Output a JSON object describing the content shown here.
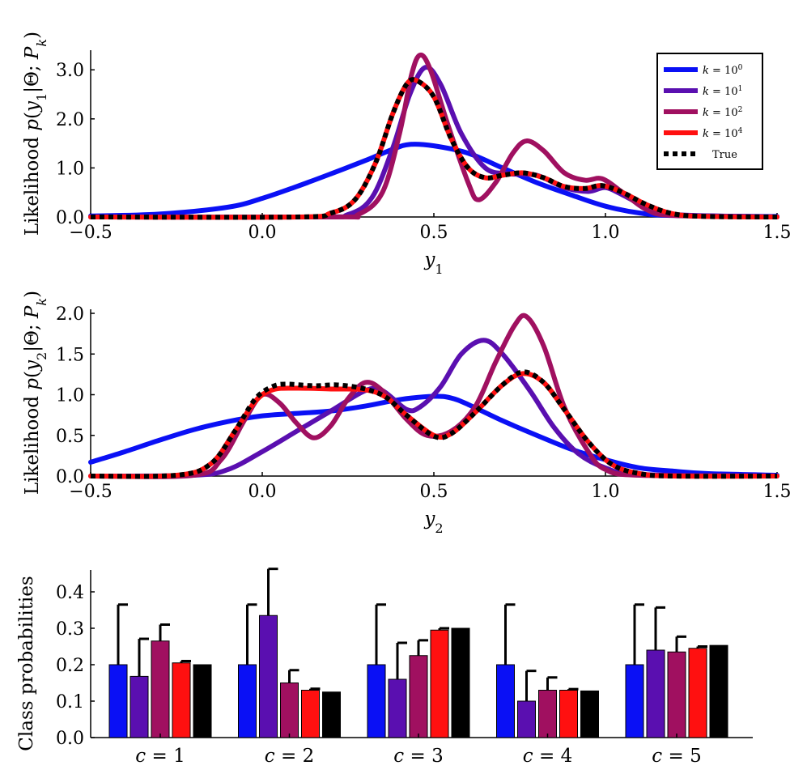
{
  "colors": {
    "k1": "#0a10f5",
    "k10": "#5a0fb0",
    "k100": "#a01060",
    "k10000": "#ff1010",
    "true": "#000000"
  },
  "chart_data": [
    {
      "type": "line",
      "ylabel": "Likelihood p(y1|Θ; P_k)",
      "xlabel": "y1",
      "xlim": [
        -0.5,
        1.5
      ],
      "ylim": [
        0,
        3.4
      ],
      "xticks": [
        "−0.5",
        "0.0",
        "0.5",
        "1.0",
        "1.5"
      ],
      "yticks": [
        "0.0",
        "1.0",
        "2.0",
        "3.0"
      ],
      "legend": {
        "position": "top-right",
        "entries": [
          "k = 10^0",
          "k = 10^1",
          "k = 10^2",
          "k = 10^4",
          "True"
        ]
      },
      "series": [
        {
          "name": "k = 10^0",
          "color_key": "k1",
          "dashed": false,
          "points": [
            [
              -0.5,
              0.02
            ],
            [
              -0.3,
              0.06
            ],
            [
              -0.1,
              0.2
            ],
            [
              0.0,
              0.38
            ],
            [
              0.1,
              0.62
            ],
            [
              0.2,
              0.88
            ],
            [
              0.3,
              1.15
            ],
            [
              0.38,
              1.38
            ],
            [
              0.43,
              1.48
            ],
            [
              0.5,
              1.45
            ],
            [
              0.6,
              1.3
            ],
            [
              0.7,
              1.0
            ],
            [
              0.8,
              0.7
            ],
            [
              0.9,
              0.45
            ],
            [
              1.0,
              0.22
            ],
            [
              1.1,
              0.08
            ],
            [
              1.2,
              0.03
            ],
            [
              1.5,
              0.01
            ]
          ]
        },
        {
          "name": "k = 10^1",
          "color_key": "k10",
          "dashed": false,
          "points": [
            [
              -0.5,
              0.0
            ],
            [
              0.15,
              0.0
            ],
            [
              0.25,
              0.05
            ],
            [
              0.32,
              0.4
            ],
            [
              0.38,
              1.4
            ],
            [
              0.43,
              2.5
            ],
            [
              0.475,
              3.05
            ],
            [
              0.52,
              2.7
            ],
            [
              0.58,
              1.7
            ],
            [
              0.65,
              1.0
            ],
            [
              0.72,
              0.88
            ],
            [
              0.8,
              0.85
            ],
            [
              0.88,
              0.6
            ],
            [
              0.95,
              0.52
            ],
            [
              1.0,
              0.6
            ],
            [
              1.05,
              0.45
            ],
            [
              1.12,
              0.2
            ],
            [
              1.2,
              0.05
            ],
            [
              1.5,
              0.0
            ]
          ]
        },
        {
          "name": "k = 10^2",
          "color_key": "k100",
          "dashed": false,
          "points": [
            [
              -0.5,
              0.0
            ],
            [
              0.2,
              0.0
            ],
            [
              0.28,
              0.05
            ],
            [
              0.35,
              0.5
            ],
            [
              0.4,
              1.7
            ],
            [
              0.435,
              2.9
            ],
            [
              0.46,
              3.3
            ],
            [
              0.49,
              3.0
            ],
            [
              0.54,
              1.9
            ],
            [
              0.6,
              0.7
            ],
            [
              0.63,
              0.35
            ],
            [
              0.68,
              0.7
            ],
            [
              0.73,
              1.3
            ],
            [
              0.77,
              1.55
            ],
            [
              0.82,
              1.35
            ],
            [
              0.88,
              0.9
            ],
            [
              0.94,
              0.75
            ],
            [
              0.99,
              0.78
            ],
            [
              1.05,
              0.5
            ],
            [
              1.12,
              0.15
            ],
            [
              1.2,
              0.03
            ],
            [
              1.5,
              0.0
            ]
          ]
        },
        {
          "name": "k = 10^4",
          "color_key": "k10000",
          "dashed": false,
          "points": [
            [
              -0.5,
              0.0
            ],
            [
              0.1,
              0.0
            ],
            [
              0.2,
              0.08
            ],
            [
              0.27,
              0.35
            ],
            [
              0.33,
              1.1
            ],
            [
              0.38,
              2.1
            ],
            [
              0.42,
              2.7
            ],
            [
              0.45,
              2.78
            ],
            [
              0.5,
              2.45
            ],
            [
              0.55,
              1.6
            ],
            [
              0.6,
              1.0
            ],
            [
              0.65,
              0.8
            ],
            [
              0.7,
              0.85
            ],
            [
              0.76,
              0.9
            ],
            [
              0.82,
              0.8
            ],
            [
              0.88,
              0.62
            ],
            [
              0.94,
              0.58
            ],
            [
              0.99,
              0.64
            ],
            [
              1.05,
              0.5
            ],
            [
              1.12,
              0.25
            ],
            [
              1.2,
              0.06
            ],
            [
              1.3,
              0.01
            ],
            [
              1.5,
              0.0
            ]
          ]
        },
        {
          "name": "True",
          "color_key": "true",
          "dashed": true,
          "points": [
            [
              -0.5,
              0.0
            ],
            [
              0.1,
              0.0
            ],
            [
              0.2,
              0.08
            ],
            [
              0.27,
              0.35
            ],
            [
              0.33,
              1.1
            ],
            [
              0.38,
              2.1
            ],
            [
              0.42,
              2.7
            ],
            [
              0.45,
              2.78
            ],
            [
              0.5,
              2.45
            ],
            [
              0.55,
              1.6
            ],
            [
              0.6,
              1.0
            ],
            [
              0.65,
              0.8
            ],
            [
              0.7,
              0.85
            ],
            [
              0.76,
              0.9
            ],
            [
              0.82,
              0.8
            ],
            [
              0.88,
              0.62
            ],
            [
              0.94,
              0.58
            ],
            [
              0.99,
              0.64
            ],
            [
              1.05,
              0.5
            ],
            [
              1.12,
              0.25
            ],
            [
              1.2,
              0.06
            ],
            [
              1.3,
              0.01
            ],
            [
              1.5,
              0.0
            ]
          ]
        }
      ]
    },
    {
      "type": "line",
      "ylabel": "Likelihood p(y2|Θ; P_k)",
      "xlabel": "y2",
      "xlim": [
        -0.5,
        1.5
      ],
      "ylim": [
        0,
        2.05
      ],
      "xticks": [
        "−0.5",
        "0.0",
        "0.5",
        "1.0",
        "1.5"
      ],
      "yticks": [
        "0.0",
        "0.5",
        "1.0",
        "1.5",
        "2.0"
      ],
      "series": [
        {
          "name": "k = 10^0",
          "color_key": "k1",
          "dashed": false,
          "points": [
            [
              -0.5,
              0.17
            ],
            [
              -0.4,
              0.3
            ],
            [
              -0.3,
              0.44
            ],
            [
              -0.2,
              0.57
            ],
            [
              -0.1,
              0.67
            ],
            [
              0.0,
              0.74
            ],
            [
              0.1,
              0.77
            ],
            [
              0.2,
              0.8
            ],
            [
              0.3,
              0.86
            ],
            [
              0.4,
              0.94
            ],
            [
              0.5,
              0.98
            ],
            [
              0.55,
              0.96
            ],
            [
              0.6,
              0.88
            ],
            [
              0.7,
              0.68
            ],
            [
              0.8,
              0.5
            ],
            [
              0.9,
              0.33
            ],
            [
              1.0,
              0.2
            ],
            [
              1.1,
              0.1
            ],
            [
              1.2,
              0.06
            ],
            [
              1.3,
              0.03
            ],
            [
              1.5,
              0.01
            ]
          ]
        },
        {
          "name": "k = 10^1",
          "color_key": "k10",
          "dashed": false,
          "points": [
            [
              -0.5,
              0.0
            ],
            [
              -0.2,
              0.01
            ],
            [
              -0.1,
              0.08
            ],
            [
              0.0,
              0.3
            ],
            [
              0.1,
              0.55
            ],
            [
              0.2,
              0.8
            ],
            [
              0.3,
              1.05
            ],
            [
              0.35,
              1.05
            ],
            [
              0.42,
              0.82
            ],
            [
              0.46,
              0.85
            ],
            [
              0.52,
              1.1
            ],
            [
              0.58,
              1.5
            ],
            [
              0.645,
              1.67
            ],
            [
              0.7,
              1.5
            ],
            [
              0.78,
              1.05
            ],
            [
              0.85,
              0.6
            ],
            [
              0.92,
              0.28
            ],
            [
              1.0,
              0.1
            ],
            [
              1.1,
              0.02
            ],
            [
              1.5,
              0.0
            ]
          ]
        },
        {
          "name": "k = 10^2",
          "color_key": "k100",
          "dashed": false,
          "points": [
            [
              -0.5,
              0.0
            ],
            [
              -0.2,
              0.01
            ],
            [
              -0.12,
              0.2
            ],
            [
              -0.05,
              0.7
            ],
            [
              0.0,
              1.0
            ],
            [
              0.05,
              0.9
            ],
            [
              0.1,
              0.65
            ],
            [
              0.15,
              0.47
            ],
            [
              0.2,
              0.62
            ],
            [
              0.25,
              0.95
            ],
            [
              0.3,
              1.15
            ],
            [
              0.35,
              1.05
            ],
            [
              0.42,
              0.7
            ],
            [
              0.48,
              0.5
            ],
            [
              0.55,
              0.55
            ],
            [
              0.62,
              0.85
            ],
            [
              0.68,
              1.4
            ],
            [
              0.735,
              1.85
            ],
            [
              0.77,
              1.96
            ],
            [
              0.82,
              1.6
            ],
            [
              0.88,
              0.85
            ],
            [
              0.95,
              0.3
            ],
            [
              1.0,
              0.08
            ],
            [
              1.1,
              0.01
            ],
            [
              1.5,
              0.0
            ]
          ]
        },
        {
          "name": "k = 10^4",
          "color_key": "k10000",
          "dashed": false,
          "points": [
            [
              -0.5,
              0.0
            ],
            [
              -0.25,
              0.01
            ],
            [
              -0.15,
              0.15
            ],
            [
              -0.08,
              0.55
            ],
            [
              -0.02,
              0.92
            ],
            [
              0.03,
              1.06
            ],
            [
              0.1,
              1.08
            ],
            [
              0.2,
              1.07
            ],
            [
              0.3,
              1.06
            ],
            [
              0.36,
              0.97
            ],
            [
              0.42,
              0.75
            ],
            [
              0.5,
              0.5
            ],
            [
              0.55,
              0.52
            ],
            [
              0.62,
              0.78
            ],
            [
              0.7,
              1.12
            ],
            [
              0.76,
              1.26
            ],
            [
              0.82,
              1.15
            ],
            [
              0.88,
              0.82
            ],
            [
              0.95,
              0.42
            ],
            [
              1.02,
              0.14
            ],
            [
              1.1,
              0.03
            ],
            [
              1.2,
              0.0
            ],
            [
              1.5,
              0.0
            ]
          ]
        },
        {
          "name": "True",
          "color_key": "true",
          "dashed": true,
          "points": [
            [
              -0.5,
              0.0
            ],
            [
              -0.25,
              0.01
            ],
            [
              -0.15,
              0.15
            ],
            [
              -0.08,
              0.55
            ],
            [
              -0.02,
              0.95
            ],
            [
              0.03,
              1.1
            ],
            [
              0.07,
              1.13
            ],
            [
              0.15,
              1.11
            ],
            [
              0.22,
              1.12
            ],
            [
              0.3,
              1.07
            ],
            [
              0.36,
              0.97
            ],
            [
              0.42,
              0.75
            ],
            [
              0.5,
              0.49
            ],
            [
              0.55,
              0.52
            ],
            [
              0.62,
              0.78
            ],
            [
              0.7,
              1.12
            ],
            [
              0.76,
              1.28
            ],
            [
              0.82,
              1.15
            ],
            [
              0.88,
              0.82
            ],
            [
              0.95,
              0.42
            ],
            [
              1.02,
              0.14
            ],
            [
              1.1,
              0.03
            ],
            [
              1.2,
              0.0
            ],
            [
              1.5,
              0.0
            ]
          ]
        }
      ]
    },
    {
      "type": "bar",
      "ylabel": "Class probabilities",
      "xlabel": "",
      "ylim": [
        0,
        0.46
      ],
      "yticks": [
        "0.0",
        "0.1",
        "0.2",
        "0.3",
        "0.4"
      ],
      "categories": [
        "c = 1",
        "c = 2",
        "c = 3",
        "c = 4",
        "c = 5"
      ],
      "series": [
        {
          "name": "k = 10^0",
          "color_key": "k1",
          "values": [
            0.2,
            0.2,
            0.2,
            0.2,
            0.2
          ],
          "errors": [
            0.165,
            0.165,
            0.165,
            0.165,
            0.165
          ]
        },
        {
          "name": "k = 10^1",
          "color_key": "k10",
          "values": [
            0.168,
            0.335,
            0.16,
            0.1,
            0.24
          ],
          "errors": [
            0.103,
            0.128,
            0.1,
            0.083,
            0.117
          ]
        },
        {
          "name": "k = 10^2",
          "color_key": "k100",
          "values": [
            0.265,
            0.15,
            0.225,
            0.13,
            0.235
          ],
          "errors": [
            0.045,
            0.035,
            0.042,
            0.035,
            0.042
          ]
        },
        {
          "name": "k = 10^4",
          "color_key": "k10000",
          "values": [
            0.205,
            0.13,
            0.295,
            0.13,
            0.245
          ],
          "errors": [
            0.005,
            0.004,
            0.005,
            0.003,
            0.005
          ]
        },
        {
          "name": "True",
          "color_key": "true",
          "values": [
            0.2,
            0.125,
            0.3,
            0.128,
            0.253
          ],
          "errors": [
            0,
            0,
            0,
            0,
            0
          ]
        }
      ]
    }
  ]
}
